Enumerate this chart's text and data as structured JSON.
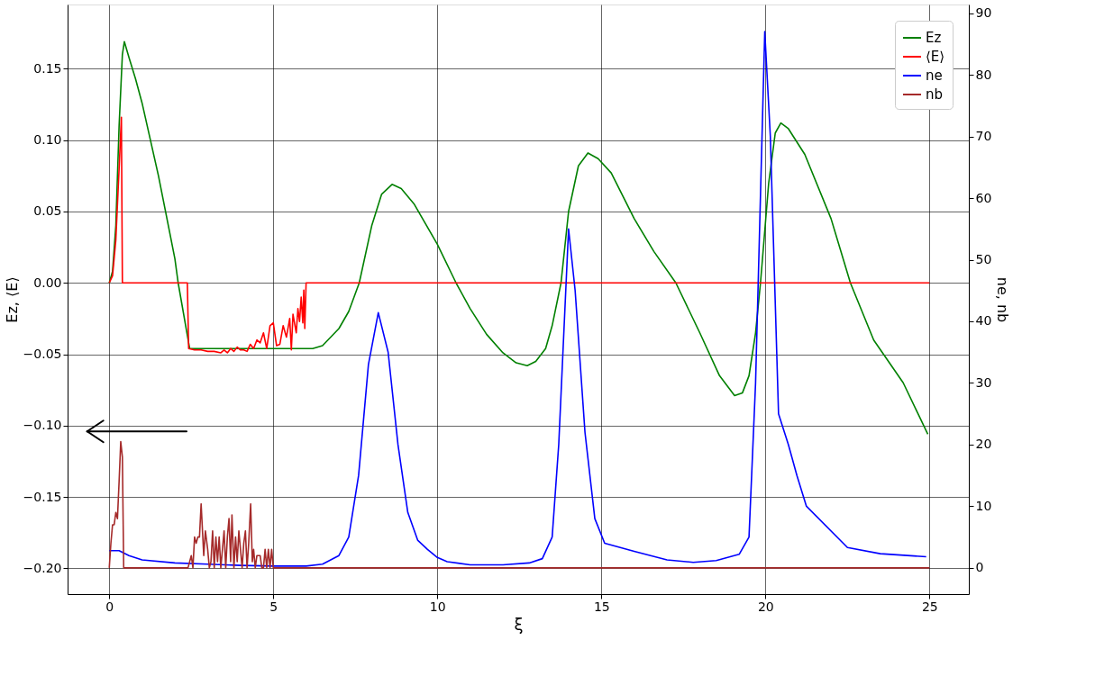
{
  "chart_data": {
    "type": "line",
    "xlabel": "ξ",
    "ylabel": "Ez, ⟨E⟩",
    "y2label": "ne, nb",
    "xlim": [
      -1.27,
      26.2
    ],
    "ylim": [
      -0.218,
      0.195
    ],
    "y2lim": [
      -4.25,
      91.4
    ],
    "xticks": [
      0,
      5,
      10,
      15,
      20,
      25
    ],
    "yticks": [
      {
        "value": -0.2,
        "label": "−0.20"
      },
      {
        "value": -0.15,
        "label": "−0.15"
      },
      {
        "value": -0.1,
        "label": "−0.10"
      },
      {
        "value": -0.05,
        "label": "−0.05"
      },
      {
        "value": 0,
        "label": "0.00"
      },
      {
        "value": 0.05,
        "label": "0.05"
      },
      {
        "value": 0.1,
        "label": "0.10"
      },
      {
        "value": 0.15,
        "label": "0.15"
      }
    ],
    "y2ticks": [
      0,
      10,
      20,
      30,
      40,
      50,
      60,
      70,
      80,
      90
    ],
    "grid": true,
    "legend": "top right",
    "series": [
      {
        "name": "Ez",
        "color": "#008000",
        "x": [
          0,
          0.1,
          0.2,
          0.3,
          0.4,
          0.46,
          0.6,
          0.8,
          1.0,
          1.5,
          2.0,
          2.1,
          2.45,
          6.2,
          6.5,
          7.0,
          7.3,
          7.62,
          8.0,
          8.3,
          8.62,
          8.9,
          9.3,
          10.0,
          10.57,
          11.0,
          11.5,
          12.0,
          12.4,
          12.74,
          13.0,
          13.3,
          13.5,
          13.77,
          14.0,
          14.3,
          14.59,
          14.9,
          15.3,
          16.0,
          16.6,
          17.27,
          18.0,
          18.6,
          19.06,
          19.3,
          19.5,
          19.7,
          19.85,
          20.1,
          20.3,
          20.47,
          20.7,
          21.2,
          22.0,
          22.59,
          23.3,
          24.2,
          24.95
        ],
        "values": [
          0,
          0.008,
          0.04,
          0.11,
          0.16,
          0.169,
          0.158,
          0.143,
          0.126,
          0.075,
          0.017,
          0.0,
          -0.046,
          -0.046,
          -0.044,
          -0.032,
          -0.02,
          0.0,
          0.04,
          0.062,
          0.069,
          0.066,
          0.055,
          0.027,
          0.0,
          -0.018,
          -0.036,
          -0.049,
          -0.056,
          -0.058,
          -0.055,
          -0.046,
          -0.03,
          0.0,
          0.05,
          0.082,
          0.091,
          0.087,
          0.077,
          0.045,
          0.022,
          0.0,
          -0.035,
          -0.065,
          -0.079,
          -0.077,
          -0.065,
          -0.035,
          0.0,
          0.07,
          0.105,
          0.112,
          0.108,
          0.09,
          0.045,
          0.0,
          -0.04,
          -0.07,
          -0.106
        ]
      },
      {
        "name": "⟨E⟩",
        "color": "#ff0000",
        "x": [
          0,
          0.1,
          0.2,
          0.3,
          0.37,
          0.4,
          2.38,
          2.42,
          2.6,
          2.8,
          3.0,
          3.2,
          3.4,
          3.5,
          3.6,
          3.7,
          3.8,
          3.9,
          4.0,
          4.1,
          4.2,
          4.3,
          4.4,
          4.5,
          4.6,
          4.7,
          4.8,
          4.9,
          5.0,
          5.1,
          5.2,
          5.3,
          5.4,
          5.5,
          5.55,
          5.6,
          5.7,
          5.75,
          5.8,
          5.85,
          5.9,
          5.93,
          5.96,
          6.0,
          25
        ],
        "values": [
          0,
          0.005,
          0.03,
          0.08,
          0.116,
          0,
          0,
          -0.046,
          -0.047,
          -0.047,
          -0.048,
          -0.048,
          -0.049,
          -0.047,
          -0.049,
          -0.046,
          -0.048,
          -0.045,
          -0.047,
          -0.047,
          -0.048,
          -0.043,
          -0.046,
          -0.04,
          -0.042,
          -0.035,
          -0.046,
          -0.03,
          -0.028,
          -0.044,
          -0.043,
          -0.03,
          -0.038,
          -0.025,
          -0.047,
          -0.022,
          -0.035,
          -0.018,
          -0.027,
          -0.01,
          -0.028,
          -0.005,
          -0.032,
          0,
          0
        ]
      },
      {
        "name": "ne",
        "color": "#0000ff",
        "axis": "y2",
        "x": [
          0,
          0.3,
          0.6,
          1.0,
          2.0,
          3.0,
          4.0,
          5.0,
          6.0,
          6.5,
          7.0,
          7.3,
          7.6,
          7.9,
          8.2,
          8.5,
          8.8,
          9.1,
          9.4,
          9.7,
          10.0,
          10.3,
          11,
          12,
          12.8,
          13.2,
          13.5,
          13.7,
          14.0,
          14.2,
          14.5,
          14.8,
          15.1,
          16,
          17,
          17.8,
          18.5,
          19.2,
          19.5,
          19.7,
          19.98,
          20.15,
          20.4,
          20.7,
          20.96,
          21.25,
          22.5,
          23.5,
          24.9
        ],
        "values": [
          2.8,
          2.8,
          2.0,
          1.3,
          0.8,
          0.6,
          0.4,
          0.3,
          0.3,
          0.6,
          2,
          5,
          15,
          33,
          41.4,
          35,
          20,
          9,
          4.5,
          3,
          1.7,
          1.0,
          0.5,
          0.5,
          0.8,
          1.5,
          5,
          20,
          55,
          45,
          22,
          8,
          4,
          2.7,
          1.3,
          0.9,
          1.2,
          2.2,
          5,
          30,
          87,
          70,
          25,
          20,
          15,
          10,
          3.3,
          2.3,
          1.8
        ]
      },
      {
        "name": "nb",
        "color": "#a52a2a",
        "axis": "y2",
        "x": [
          0,
          0.05,
          0.1,
          0.15,
          0.2,
          0.25,
          0.3,
          0.35,
          0.4,
          0.44,
          2.4,
          2.5,
          2.55,
          2.6,
          2.65,
          2.7,
          2.75,
          2.8,
          2.88,
          2.93,
          3.0,
          3.05,
          3.1,
          3.15,
          3.2,
          3.25,
          3.3,
          3.35,
          3.4,
          3.45,
          3.5,
          3.55,
          3.6,
          3.65,
          3.7,
          3.74,
          3.8,
          3.85,
          3.9,
          3.95,
          4.0,
          4.05,
          4.1,
          4.15,
          4.2,
          4.25,
          4.31,
          4.36,
          4.4,
          4.45,
          4.5,
          4.6,
          4.65,
          4.7,
          4.75,
          4.8,
          4.85,
          4.9,
          4.95,
          5.0,
          25
        ],
        "values": [
          0,
          4,
          7,
          7,
          9,
          8,
          14,
          20.5,
          18,
          0,
          0,
          2,
          0,
          5,
          4,
          5,
          5,
          10.4,
          2,
          6,
          3,
          0,
          1,
          6,
          0,
          5,
          1,
          5,
          0,
          3,
          6,
          0,
          5,
          8,
          1,
          8.6,
          0,
          5,
          1,
          6,
          3,
          0,
          4,
          6,
          0,
          4,
          10.4,
          1,
          3,
          0,
          2,
          2,
          0,
          0,
          3,
          0,
          3,
          0,
          3,
          0,
          0
        ]
      }
    ]
  }
}
